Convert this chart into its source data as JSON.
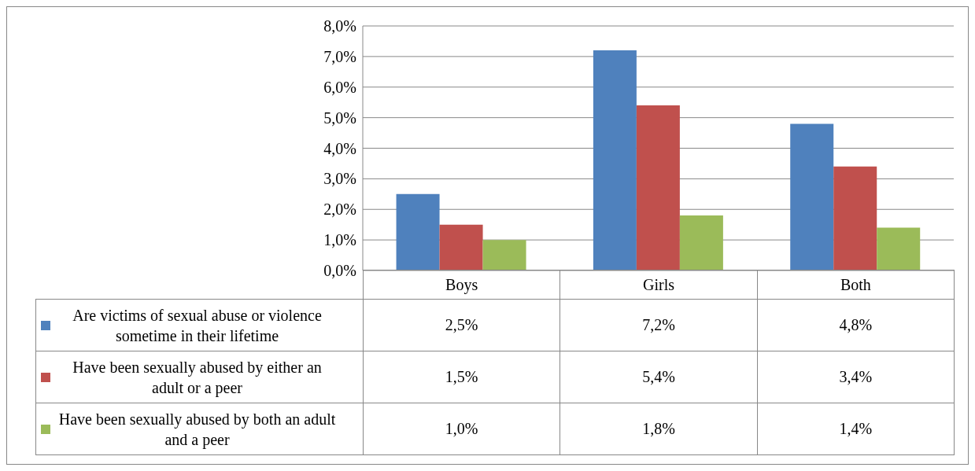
{
  "chart_data": {
    "type": "bar",
    "categories": [
      "Boys",
      "Girls",
      "Both"
    ],
    "series": [
      {
        "name": "Are victims of sexual abuse or violence sometime in their lifetime",
        "color": "#4f81bd",
        "values": [
          2.5,
          7.2,
          4.8
        ],
        "value_labels": [
          "2,5%",
          "7,2%",
          "4,8%"
        ]
      },
      {
        "name": "Have been sexually abused by either an adult or a peer",
        "color": "#c0504d",
        "values": [
          1.5,
          5.4,
          3.4
        ],
        "value_labels": [
          "1,5%",
          "5,4%",
          "3,4%"
        ]
      },
      {
        "name": "Have been sexually abused by both an adult and a peer",
        "color": "#9bbb59",
        "values": [
          1.0,
          1.8,
          1.4
        ],
        "value_labels": [
          "1,0%",
          "1,8%",
          "1,4%"
        ]
      }
    ],
    "ylim": [
      0,
      8
    ],
    "yticks": [
      {
        "value": 0,
        "label": "0,0%"
      },
      {
        "value": 1,
        "label": "1,0%"
      },
      {
        "value": 2,
        "label": "2,0%"
      },
      {
        "value": 3,
        "label": "3,0%"
      },
      {
        "value": 4,
        "label": "4,0%"
      },
      {
        "value": 5,
        "label": "5,0%"
      },
      {
        "value": 6,
        "label": "6,0%"
      },
      {
        "value": 7,
        "label": "7,0%"
      },
      {
        "value": 8,
        "label": "8,0%"
      }
    ],
    "grid": "y",
    "legend": "bottom"
  }
}
